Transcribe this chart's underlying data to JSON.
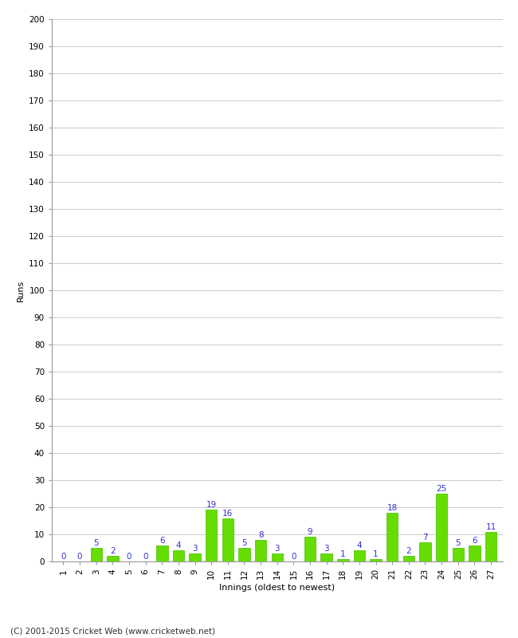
{
  "innings": [
    1,
    2,
    3,
    4,
    5,
    6,
    7,
    8,
    9,
    10,
    11,
    12,
    13,
    14,
    15,
    16,
    17,
    18,
    19,
    20,
    21,
    22,
    23,
    24,
    25,
    26,
    27
  ],
  "runs": [
    0,
    0,
    5,
    2,
    0,
    0,
    6,
    4,
    3,
    19,
    16,
    5,
    8,
    3,
    0,
    9,
    3,
    1,
    4,
    1,
    18,
    2,
    7,
    25,
    5,
    6,
    11
  ],
  "bar_color": "#66dd00",
  "bar_edge_color": "#44bb00",
  "label_color": "#3333cc",
  "xlabel": "Innings (oldest to newest)",
  "ylabel": "Runs",
  "ylim": [
    0,
    200
  ],
  "yticks": [
    0,
    10,
    20,
    30,
    40,
    50,
    60,
    70,
    80,
    90,
    100,
    110,
    120,
    130,
    140,
    150,
    160,
    170,
    180,
    190,
    200
  ],
  "footer": "(C) 2001-2015 Cricket Web (www.cricketweb.net)",
  "background_color": "#ffffff",
  "grid_color": "#cccccc",
  "label_fontsize": 7.5,
  "axis_label_fontsize": 8,
  "tick_fontsize": 7.5,
  "footer_fontsize": 7.5
}
